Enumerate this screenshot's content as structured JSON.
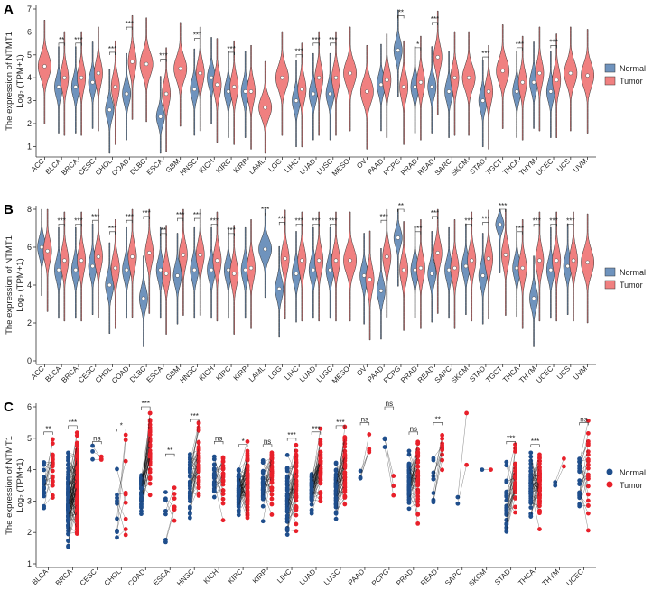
{
  "colors": {
    "normal": "#6f93bd",
    "tumor": "#f08080",
    "normal_dot": "#1f4e8c",
    "tumor_dot": "#e8202a"
  },
  "axis_label_line1": "The expression of NTMT1",
  "axis_label_line2": "Log₂ (TPM+1)",
  "chart_data": [
    {
      "panel": "A",
      "type": "violin",
      "ylim": [
        0.7,
        7
      ],
      "yticks": [
        1,
        2,
        3,
        4,
        5,
        6,
        7
      ],
      "legend": {
        "position": "right",
        "entries": [
          "Normal",
          "Tumor"
        ]
      },
      "categories": [
        "ACC",
        "BLCA",
        "BRCA",
        "CESC",
        "CHOL",
        "COAD",
        "DLBC",
        "ESCA",
        "GBM",
        "HNSC",
        "KICH",
        "KIRC",
        "KIRP",
        "LAML",
        "LGG",
        "LIHC",
        "LUAD",
        "LUSC",
        "MESO",
        "OV",
        "PAAD",
        "PCPG",
        "PRAD",
        "READ",
        "SARC",
        "SKCM",
        "STAD",
        "TGCT",
        "THCA",
        "THYM",
        "UCEC",
        "UCS",
        "UVM"
      ],
      "normal": [
        null,
        3.6,
        3.6,
        3.8,
        2.6,
        3.3,
        null,
        2.3,
        null,
        3.5,
        4.0,
        3.4,
        3.4,
        null,
        null,
        3.0,
        3.3,
        3.3,
        null,
        null,
        3.7,
        5.2,
        3.6,
        3.6,
        3.4,
        null,
        3.0,
        null,
        3.4,
        3.8,
        3.4,
        null,
        null
      ],
      "tumor": [
        4.5,
        4.0,
        4.0,
        4.2,
        3.6,
        4.7,
        4.6,
        3.3,
        4.4,
        4.2,
        3.7,
        3.6,
        3.4,
        2.7,
        4.0,
        3.5,
        4.0,
        4.0,
        4.2,
        3.4,
        3.9,
        3.6,
        3.8,
        4.9,
        4.0,
        4.0,
        3.4,
        4.3,
        3.8,
        4.2,
        3.9,
        4.2,
        4.1
      ],
      "significance": [
        null,
        "**",
        "***",
        null,
        "***",
        "***",
        null,
        "***",
        null,
        "***",
        null,
        "***",
        null,
        null,
        null,
        "***",
        "***",
        "***",
        null,
        null,
        null,
        "**",
        "*",
        "***",
        null,
        null,
        "***",
        null,
        "***",
        null,
        "***",
        null,
        null
      ]
    },
    {
      "panel": "B",
      "type": "violin",
      "ylim": [
        0,
        8
      ],
      "yticks": [
        0,
        2,
        4,
        6,
        8
      ],
      "legend": {
        "position": "right",
        "entries": [
          "Normal",
          "Tumor"
        ]
      },
      "categories": [
        "ACC",
        "BLCA",
        "BRCA",
        "CESC",
        "CHOL",
        "COAD",
        "DLBC",
        "ESCA",
        "GBM",
        "HNSC",
        "KICH",
        "KIRC",
        "KIRP",
        "LAML",
        "LGG",
        "LIHC",
        "LUAD",
        "LUSC",
        "MESO",
        "OV",
        "PAAD",
        "PCPG",
        "PRAD",
        "READ",
        "SARC",
        "SKCM",
        "STAD",
        "TGCT",
        "THCA",
        "THYM",
        "UCEC",
        "UCS",
        "UVM"
      ],
      "normal": [
        6.0,
        4.8,
        4.8,
        5.0,
        4.0,
        4.8,
        3.3,
        4.8,
        4.5,
        4.8,
        4.8,
        4.8,
        4.8,
        5.9,
        3.8,
        4.6,
        4.8,
        4.8,
        null,
        4.5,
        3.7,
        6.5,
        4.8,
        4.6,
        4.8,
        5.0,
        4.5,
        7.2,
        4.9,
        3.3,
        4.8,
        5.0,
        null
      ],
      "tumor": [
        5.8,
        5.3,
        5.3,
        5.5,
        4.9,
        5.5,
        5.7,
        4.6,
        5.6,
        5.6,
        5.3,
        4.6,
        4.9,
        null,
        5.4,
        5.3,
        5.3,
        5.3,
        5.3,
        4.3,
        5.5,
        4.8,
        4.9,
        5.7,
        4.9,
        5.3,
        5.4,
        5.6,
        4.9,
        5.3,
        5.3,
        5.3,
        5.2
      ],
      "significance": [
        null,
        "***",
        "***",
        "***",
        "***",
        "***",
        "***",
        "**",
        "***",
        "***",
        "***",
        "***",
        null,
        "***",
        "***",
        "***",
        "***",
        "***",
        null,
        null,
        "***",
        "**",
        "***",
        "***",
        null,
        "***",
        "***",
        "***",
        "***",
        "***",
        "***",
        "***",
        null
      ]
    },
    {
      "panel": "C",
      "type": "paired-scatter",
      "ylim": [
        1,
        6
      ],
      "yticks": [
        1,
        2,
        3,
        4,
        5,
        6
      ],
      "legend": {
        "position": "right",
        "entries": [
          "Normal",
          "Tumor"
        ]
      },
      "categories": [
        "BLCA",
        "BRCA",
        "CESC",
        "CHOL",
        "COAD",
        "ESCA",
        "HNSC",
        "KICH",
        "KIRC",
        "KIRP",
        "LIHC",
        "LUAD",
        "LUSC",
        "PAAD",
        "PCPG",
        "PRAD",
        "READ",
        "SARC",
        "SKCM",
        "STAD",
        "THCA",
        "THYM",
        "UCEC"
      ],
      "pairs": [
        19,
        110,
        3,
        9,
        41,
        7,
        43,
        23,
        72,
        32,
        50,
        57,
        51,
        4,
        3,
        52,
        10,
        2,
        1,
        32,
        58,
        2,
        23
      ],
      "normal_center": [
        3.6,
        3.0,
        4.3,
        2.6,
        3.3,
        2.4,
        3.6,
        3.9,
        3.3,
        3.5,
        3.0,
        3.3,
        3.4,
        3.8,
        4.6,
        3.6,
        3.4,
        3.4,
        4.0,
        3.0,
        3.4,
        3.6,
        3.6
      ],
      "normal_spread": [
        0.4,
        0.7,
        0.2,
        0.5,
        0.3,
        0.4,
        0.5,
        0.4,
        0.4,
        0.4,
        0.6,
        0.3,
        0.4,
        0.3,
        0.6,
        0.4,
        0.4,
        0.5,
        0.0,
        0.5,
        0.4,
        0.1,
        0.5
      ],
      "tumor_center": [
        4.0,
        3.6,
        4.3,
        3.5,
        4.6,
        3.1,
        4.2,
        3.6,
        3.6,
        3.6,
        3.6,
        4.0,
        4.0,
        4.3,
        3.8,
        3.8,
        4.7,
        4.0,
        4.0,
        3.5,
        3.6,
        4.2,
        3.9
      ],
      "tumor_spread": [
        0.5,
        0.8,
        0.1,
        0.8,
        0.6,
        0.6,
        0.6,
        0.5,
        0.5,
        0.5,
        0.6,
        0.5,
        0.6,
        0.5,
        0.4,
        0.6,
        0.3,
        0.8,
        0.0,
        0.6,
        0.5,
        0.1,
        0.7
      ],
      "significance": [
        "**",
        "***",
        "ns",
        "*",
        "***",
        "**",
        "***",
        "ns",
        "*",
        "ns",
        "***",
        "***",
        "***",
        "ns",
        "ns",
        "ns",
        "**",
        null,
        null,
        "***",
        "***",
        null,
        "ns"
      ]
    }
  ]
}
